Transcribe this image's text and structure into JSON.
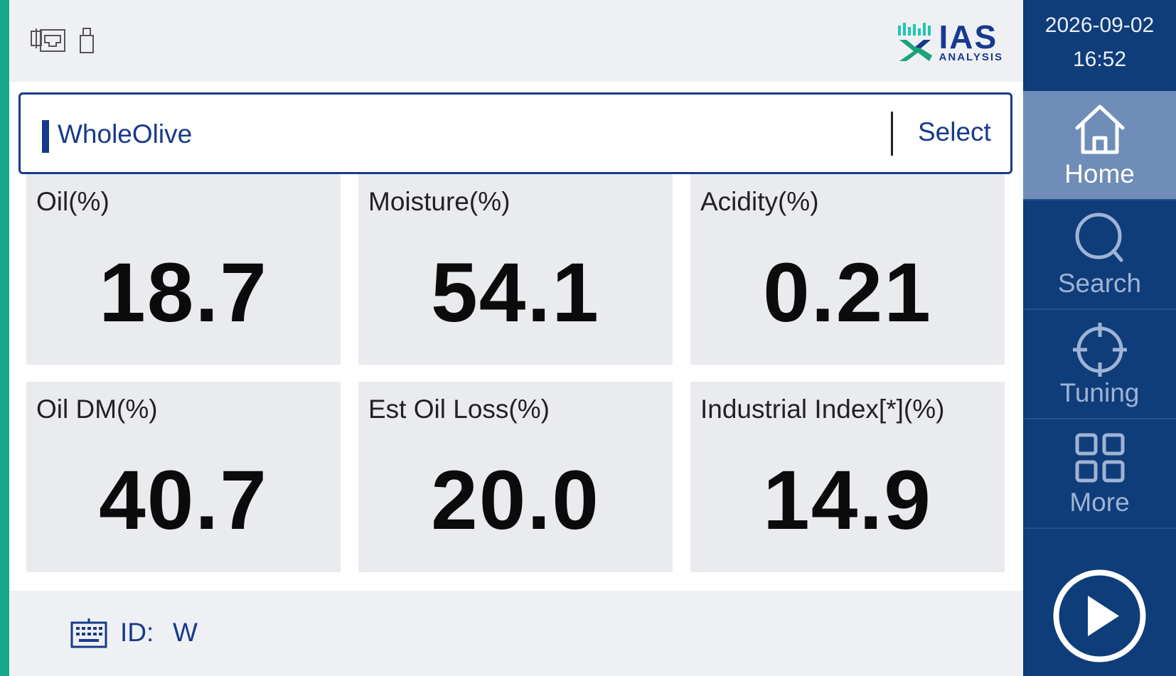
{
  "header": {
    "status_icons": [
      "ethernet-icon",
      "usb-icon"
    ],
    "logo": {
      "main": "IAS",
      "sub": "ANALYSIS"
    }
  },
  "product_selector": {
    "current": "WholeOlive",
    "button_label": "Select"
  },
  "metrics": [
    {
      "label": "Oil(%)",
      "value": "18.7"
    },
    {
      "label": "Moisture(%)",
      "value": "54.1"
    },
    {
      "label": "Acidity(%)",
      "value": "0.21"
    },
    {
      "label": "Oil DM(%)",
      "value": "40.7"
    },
    {
      "label": "Est Oil Loss(%)",
      "value": "20.0"
    },
    {
      "label": "Industrial Index[*](%)",
      "value": "14.9"
    }
  ],
  "footer": {
    "id_label": "ID:",
    "id_value": "W"
  },
  "sidebar": {
    "date": "2026-09-02",
    "time": "16:52",
    "nav": [
      {
        "label": "Home",
        "icon": "home-icon",
        "active": true
      },
      {
        "label": "Search",
        "icon": "search-icon",
        "active": false
      },
      {
        "label": "Tuning",
        "icon": "crosshair-icon",
        "active": false
      },
      {
        "label": "More",
        "icon": "grid-icon",
        "active": false
      }
    ],
    "start_icon": "play-icon"
  },
  "colors": {
    "brand_blue": "#173a8a",
    "sidebar_bg": "#0f3d7a",
    "active_nav": "#6f8db8",
    "frame_green": "#17a88a"
  }
}
